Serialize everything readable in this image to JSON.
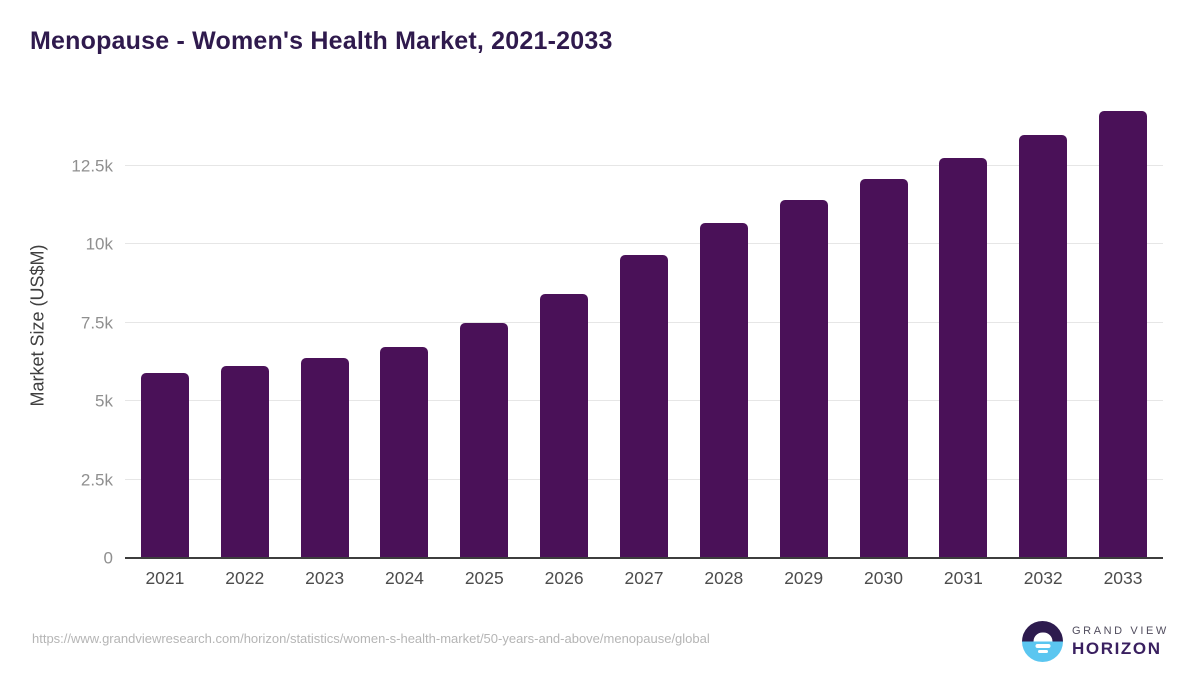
{
  "header": {
    "title": "Menopause - Women's Health Market, 2021-2033"
  },
  "chart_data": {
    "type": "bar",
    "title": "Menopause - Women's Health Market, 2021-2033",
    "categories": [
      "2021",
      "2022",
      "2023",
      "2024",
      "2025",
      "2026",
      "2027",
      "2028",
      "2029",
      "2030",
      "2031",
      "2032",
      "2033"
    ],
    "values": [
      5900,
      6120,
      6380,
      6730,
      7500,
      8420,
      9660,
      10680,
      11420,
      12090,
      12760,
      13490,
      14250
    ],
    "xlabel": "",
    "ylabel": "Market Size (US$M)",
    "ylim": [
      0,
      14920
    ],
    "yticks": [
      {
        "value": 0,
        "label": "0"
      },
      {
        "value": 2500,
        "label": "2.5k"
      },
      {
        "value": 5000,
        "label": "5k"
      },
      {
        "value": 7500,
        "label": "7.5k"
      },
      {
        "value": 10000,
        "label": "10k"
      },
      {
        "value": 12500,
        "label": "12.5k"
      }
    ],
    "grid": "horizontal",
    "legend": "none",
    "bar_color": "#4a1158"
  },
  "footer": {
    "source_url": "https://www.grandviewresearch.com/horizon/statistics/women-s-health-market/50-years-and-above/menopause/global",
    "logo": {
      "line1": "GRAND VIEW",
      "line2": "HORIZON"
    }
  },
  "colors": {
    "bar": "#4a1158",
    "title": "#2f1a4d",
    "grid": "#e6e6e6",
    "axis": "#3d3d3d",
    "ytick": "#8f8f8f",
    "xtick": "#4c4c4c",
    "ylabel": "#3f3f3f",
    "url": "#b5b5b5",
    "logo_navy": "#2d1b4e",
    "logo_blue": "#5bc6f0",
    "logo_text": "#3a2060",
    "logo_sub": "#514d5e"
  }
}
